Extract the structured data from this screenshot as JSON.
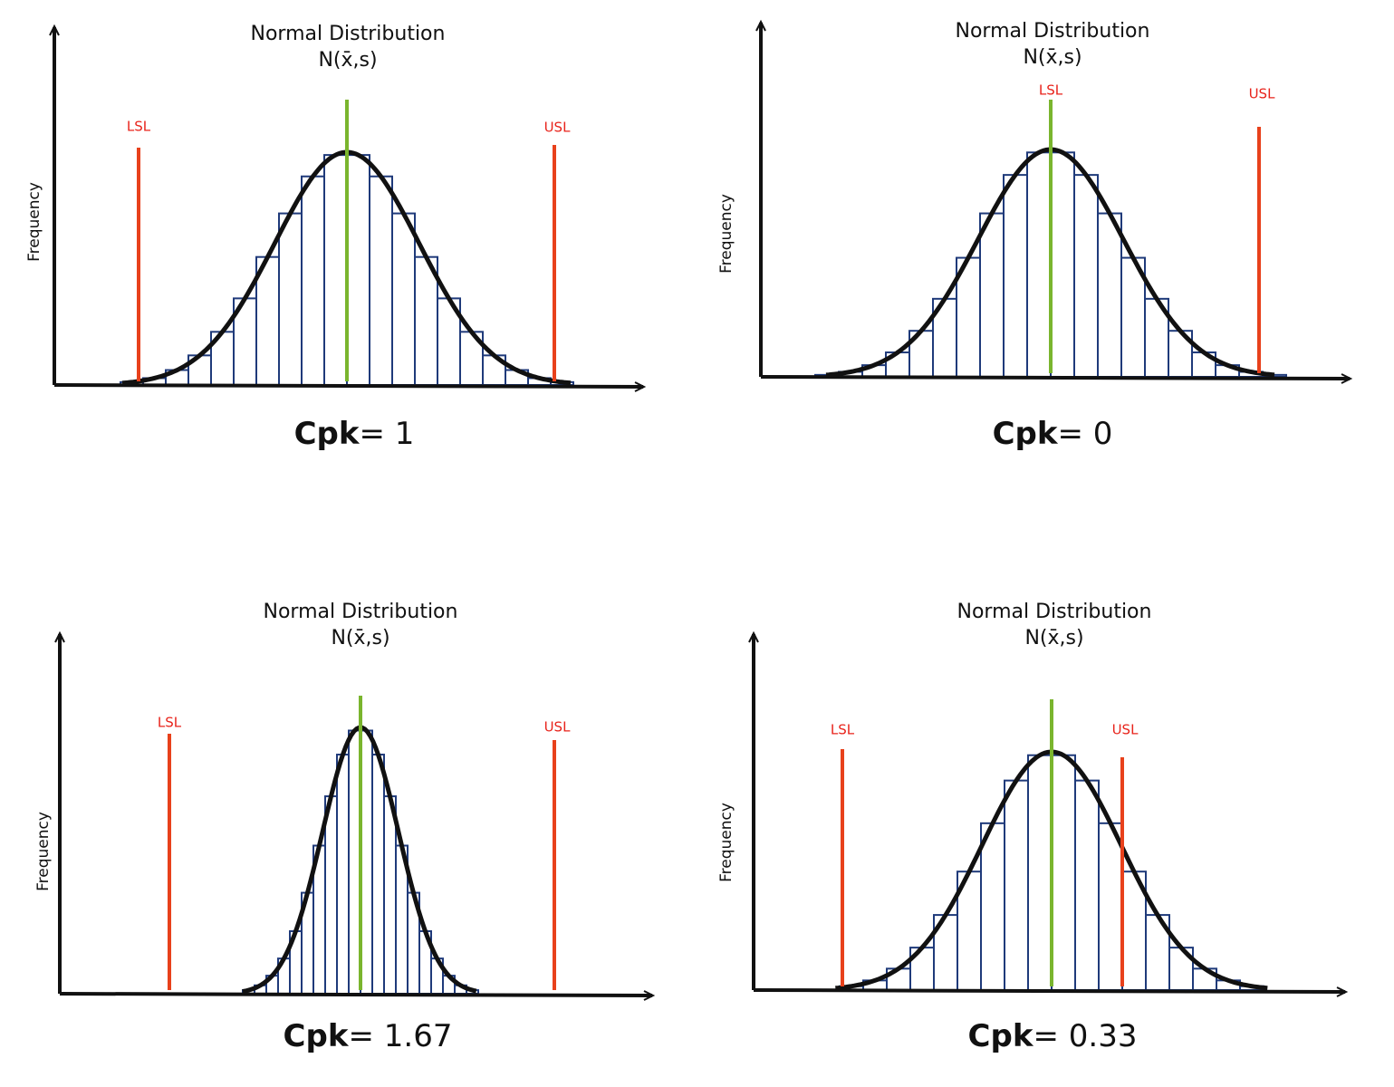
{
  "panels": [
    {
      "title": "Normal Distribution",
      "subtitle": "N(x̄,s)",
      "y_label": "Frequency",
      "lsl": "LSL",
      "usl": "USL",
      "cpk_label": "Cpk",
      "cpk_value": "= 1"
    },
    {
      "title": "Normal Distribution",
      "subtitle": "N(x̄,s)",
      "y_label": "Frequency",
      "lsl": "LSL",
      "usl": "USL",
      "cpk_label": "Cpk",
      "cpk_value": "= 0"
    },
    {
      "title": "Normal Distribution",
      "subtitle": "N(x̄,s)",
      "y_label": "Frequency",
      "lsl": "LSL",
      "usl": "USL",
      "cpk_label": "Cpk",
      "cpk_value": "= 1.67"
    },
    {
      "title": "Normal Distribution",
      "subtitle": "N(x̄,s)",
      "y_label": "Frequency",
      "lsl": "LSL",
      "usl": "USL",
      "cpk_label": "Cpk",
      "cpk_value": "= 0.33"
    }
  ]
}
